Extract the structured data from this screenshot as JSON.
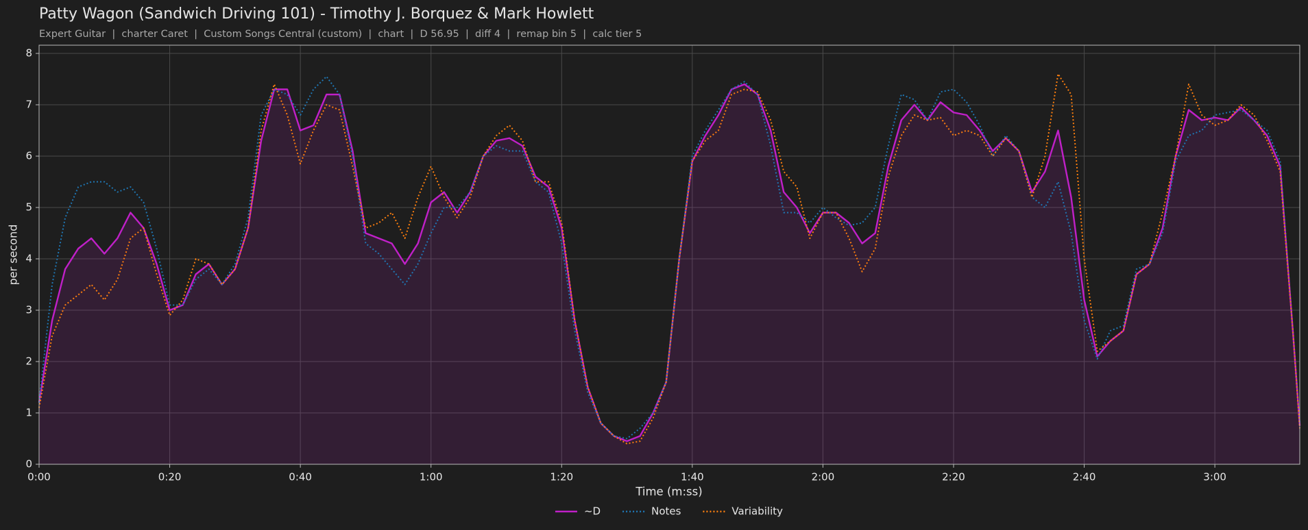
{
  "chart_data": {
    "type": "line",
    "title": "Patty Wagon (Sandwich Driving 101) - Timothy J. Borquez & Mark Howlett",
    "subtitle": "Expert Guitar  |  charter Caret  |  Custom Songs Central (custom)  |  chart  |  D 56.95  |  diff 4  |  remap bin 5  |  calc tier 5",
    "x_label": "Time (m:ss)",
    "y_label": "per second",
    "x": [
      0,
      2,
      4,
      6,
      8,
      10,
      12,
      14,
      16,
      18,
      20,
      22,
      24,
      26,
      28,
      30,
      32,
      34,
      36,
      38,
      40,
      42,
      44,
      46,
      48,
      50,
      52,
      54,
      56,
      58,
      60,
      62,
      64,
      66,
      68,
      70,
      72,
      74,
      76,
      78,
      80,
      82,
      84,
      86,
      88,
      90,
      92,
      94,
      96,
      98,
      100,
      102,
      104,
      106,
      108,
      110,
      112,
      114,
      116,
      118,
      120,
      122,
      124,
      126,
      128,
      130,
      132,
      134,
      136,
      138,
      140,
      142,
      144,
      146,
      148,
      150,
      152,
      154,
      156,
      158,
      160,
      162,
      164,
      166,
      168,
      170,
      172,
      174,
      176,
      178,
      180,
      182,
      184,
      186,
      188,
      190,
      192,
      193
    ],
    "series": [
      {
        "name": "~D",
        "color": "#c020c8",
        "line_style": "solid",
        "fill": true,
        "values": [
          1.2,
          2.8,
          3.8,
          4.2,
          4.4,
          4.1,
          4.4,
          4.9,
          4.6,
          3.9,
          3.0,
          3.1,
          3.7,
          3.9,
          3.5,
          3.8,
          4.6,
          6.3,
          7.3,
          7.3,
          6.5,
          6.6,
          7.2,
          7.2,
          6.1,
          4.5,
          4.4,
          4.3,
          3.9,
          4.3,
          5.1,
          5.3,
          4.9,
          5.3,
          6.0,
          6.3,
          6.35,
          6.2,
          5.6,
          5.4,
          4.6,
          2.8,
          1.5,
          0.8,
          0.55,
          0.45,
          0.55,
          1.0,
          1.6,
          4.0,
          5.9,
          6.4,
          6.8,
          7.3,
          7.4,
          7.2,
          6.5,
          5.3,
          5.0,
          4.5,
          4.9,
          4.9,
          4.7,
          4.3,
          4.5,
          5.8,
          6.7,
          7.0,
          6.7,
          7.05,
          6.85,
          6.8,
          6.5,
          6.1,
          6.35,
          6.1,
          5.3,
          5.7,
          6.5,
          5.2,
          3.2,
          2.1,
          2.4,
          2.6,
          3.7,
          3.9,
          4.6,
          6.0,
          6.9,
          6.7,
          6.75,
          6.7,
          6.95,
          6.7,
          6.4,
          5.8,
          2.5,
          0.75
        ]
      },
      {
        "name": "Notes",
        "color": "#1f77b4",
        "line_style": "dotted",
        "fill": false,
        "values": [
          1.2,
          3.5,
          4.8,
          5.4,
          5.5,
          5.5,
          5.3,
          5.4,
          5.1,
          4.2,
          3.1,
          3.1,
          3.6,
          3.8,
          3.5,
          3.9,
          4.8,
          6.8,
          7.3,
          7.2,
          6.8,
          7.3,
          7.55,
          7.2,
          6.0,
          4.3,
          4.1,
          3.8,
          3.5,
          3.9,
          4.5,
          5.0,
          5.0,
          5.3,
          6.0,
          6.2,
          6.1,
          6.1,
          5.5,
          5.3,
          4.3,
          2.6,
          1.4,
          0.8,
          0.55,
          0.5,
          0.7,
          1.0,
          1.6,
          4.0,
          6.0,
          6.5,
          6.9,
          7.3,
          7.45,
          7.2,
          6.2,
          4.9,
          4.9,
          4.7,
          5.0,
          4.8,
          4.65,
          4.7,
          5.0,
          6.2,
          7.2,
          7.1,
          6.7,
          7.25,
          7.3,
          7.05,
          6.6,
          6.0,
          6.4,
          6.1,
          5.2,
          5.0,
          5.5,
          4.5,
          2.8,
          2.05,
          2.6,
          2.7,
          3.8,
          3.9,
          4.5,
          5.9,
          6.4,
          6.5,
          6.8,
          6.85,
          6.9,
          6.7,
          6.5,
          5.9,
          2.5,
          0.8
        ]
      },
      {
        "name": "Variability",
        "color": "#ff7f0e",
        "line_style": "dotted",
        "fill": false,
        "values": [
          1.1,
          2.5,
          3.1,
          3.3,
          3.5,
          3.2,
          3.6,
          4.4,
          4.6,
          3.7,
          2.9,
          3.2,
          4.0,
          3.9,
          3.5,
          3.8,
          4.6,
          6.5,
          7.4,
          6.8,
          5.85,
          6.5,
          7.0,
          6.9,
          5.8,
          4.6,
          4.7,
          4.9,
          4.4,
          5.2,
          5.8,
          5.2,
          4.8,
          5.2,
          6.0,
          6.4,
          6.6,
          6.3,
          5.5,
          5.5,
          4.7,
          2.8,
          1.5,
          0.8,
          0.55,
          0.4,
          0.45,
          0.9,
          1.6,
          4.0,
          5.9,
          6.3,
          6.5,
          7.2,
          7.3,
          7.25,
          6.7,
          5.7,
          5.4,
          4.4,
          4.9,
          4.9,
          4.4,
          3.75,
          4.2,
          5.6,
          6.4,
          6.8,
          6.7,
          6.75,
          6.4,
          6.5,
          6.4,
          6.0,
          6.35,
          6.1,
          5.2,
          6.0,
          7.6,
          7.2,
          4.0,
          2.2,
          2.4,
          2.6,
          3.7,
          3.9,
          4.9,
          6.0,
          7.4,
          6.8,
          6.6,
          6.7,
          7.0,
          6.8,
          6.3,
          5.7,
          2.5,
          0.7
        ]
      }
    ],
    "xlim": [
      0,
      193
    ],
    "xticks": [
      {
        "value": 0,
        "label": "0:00"
      },
      {
        "value": 20,
        "label": "0:20"
      },
      {
        "value": 40,
        "label": "0:40"
      },
      {
        "value": 60,
        "label": "1:00"
      },
      {
        "value": 80,
        "label": "1:20"
      },
      {
        "value": 100,
        "label": "1:40"
      },
      {
        "value": 120,
        "label": "2:00"
      },
      {
        "value": 140,
        "label": "2:20"
      },
      {
        "value": 160,
        "label": "2:40"
      },
      {
        "value": 180,
        "label": "3:00"
      }
    ],
    "ylim": [
      0,
      8.16
    ],
    "yticks": [
      0,
      1,
      2,
      3,
      4,
      5,
      6,
      7,
      8
    ],
    "grid": true,
    "legend": "bottom"
  }
}
